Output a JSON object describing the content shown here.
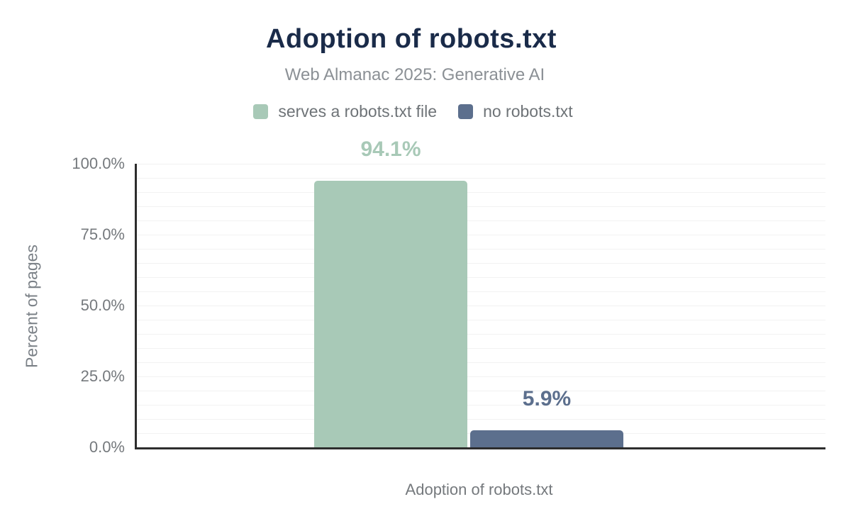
{
  "header": {
    "title": "Adoption of robots.txt",
    "subtitle": "Web Almanac 2025: Generative AI"
  },
  "chart_data": {
    "type": "bar",
    "title": "Adoption of robots.txt",
    "subtitle": "Web Almanac 2025: Generative AI",
    "categories": [
      "Adoption of robots.txt"
    ],
    "series": [
      {
        "name": "serves a robots.txt file",
        "values": [
          94.1
        ],
        "data_label": "94.1%",
        "color": "#a8c9b7"
      },
      {
        "name": "no robots.txt",
        "values": [
          5.9
        ],
        "data_label": "5.9%",
        "color": "#5c6f8d"
      }
    ],
    "xlabel": "Adoption of robots.txt",
    "ylabel": "Percent of pages",
    "ylim": [
      0,
      100
    ],
    "yticks": [
      "0.0%",
      "25.0%",
      "50.0%",
      "75.0%",
      "100.0%"
    ],
    "minor_grid_step_pct": 5,
    "grid": true,
    "legend_position": "top"
  },
  "colors": {
    "title": "#1a2b49",
    "subtitle": "#8b9095",
    "legend_text": "#6e7377",
    "tick_text": "#75797d",
    "axis_line": "#2d2d2d",
    "gridline": "#f2f2f2",
    "background": "#ffffff",
    "series_green": "#a8c9b7",
    "series_blue": "#5c6f8d"
  }
}
